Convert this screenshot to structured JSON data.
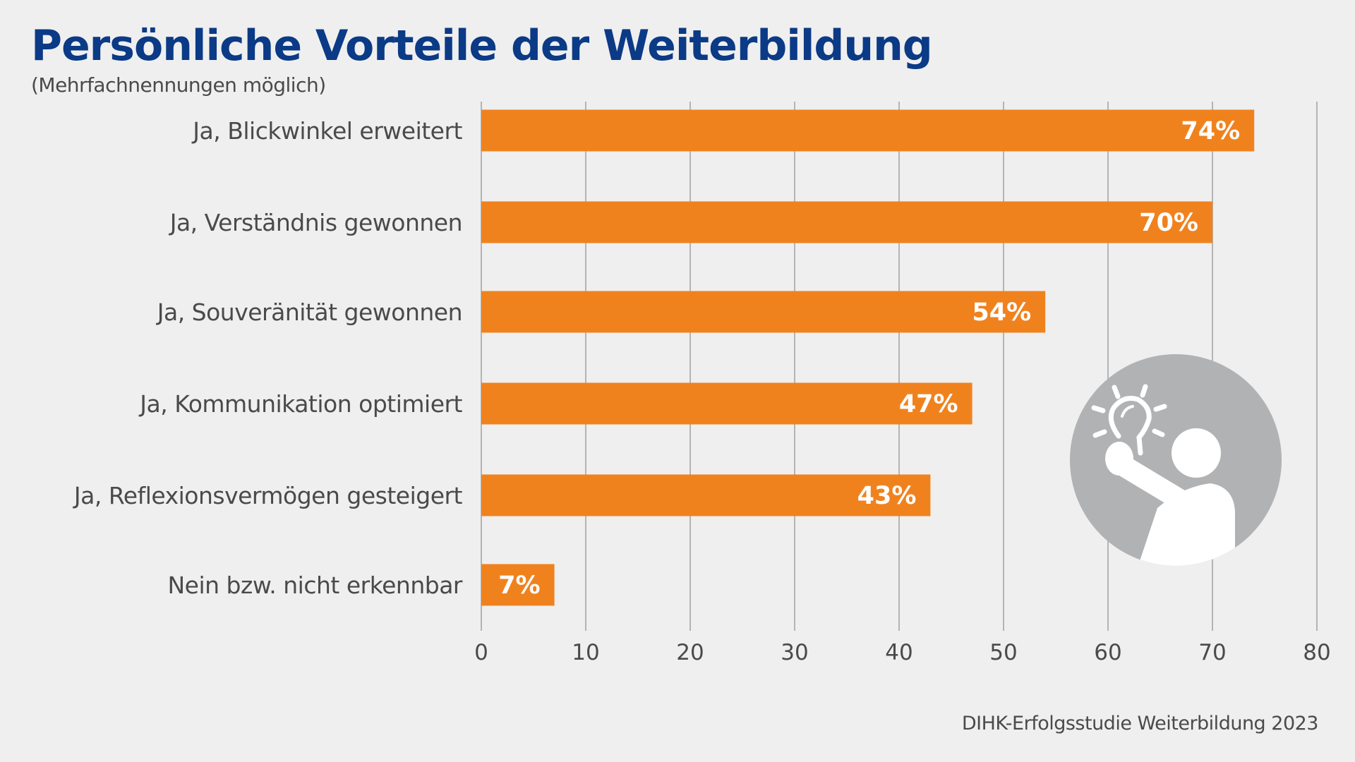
{
  "chart_data": {
    "type": "bar",
    "orientation": "horizontal",
    "title": "Persönliche Vorteile der Weiterbildung",
    "subtitle": "(Mehrfachnennungen möglich)",
    "categories": [
      "Ja, Blickwinkel erweitert",
      "Ja, Verständnis gewonnen",
      "Ja, Souveränität gewonnen",
      "Ja, Kommunikation optimiert",
      "Ja, Reflexionsvermögen gesteigert",
      "Nein bzw. nicht erkennbar"
    ],
    "values": [
      74,
      70,
      54,
      47,
      43,
      7
    ],
    "data_labels": [
      "74%",
      "70%",
      "54%",
      "47%",
      "43%",
      "7%"
    ],
    "xlim": [
      0,
      80
    ],
    "xticks": [
      "0",
      "10",
      "20",
      "30",
      "40",
      "50",
      "60",
      "70",
      "80"
    ],
    "grid": true,
    "bar_color": "#f0821e",
    "source": "DIHK-Erfolgsstudie Weiterbildung 2023"
  },
  "colors": {
    "title": "#0b3a86",
    "background": "#efefef",
    "icon_circle": "#b1b2b3"
  },
  "illustration": {
    "icon": "person-with-lightbulb-icon"
  }
}
